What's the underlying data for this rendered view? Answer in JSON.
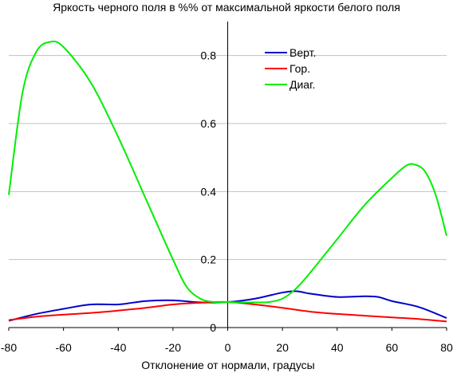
{
  "chart_data": {
    "type": "line",
    "title": "Яркость черного поля в %% от максимальной яркости белого поля",
    "xlabel": "Отклонение от нормали, градусы",
    "ylabel": "",
    "xlim": [
      -80,
      80
    ],
    "ylim": [
      0,
      0.9
    ],
    "x_ticks": [
      "-80",
      "-60",
      "-40",
      "-20",
      "0",
      "20",
      "40",
      "60",
      "80"
    ],
    "y_ticks": [
      "0",
      "0.2",
      "0.4",
      "0.6",
      "0.8"
    ],
    "grid": "horizontal",
    "legend_position": "top-right",
    "series": [
      {
        "name": "Верт.",
        "color": "#0000cc",
        "points": [
          [
            -80,
            0.02
          ],
          [
            -70,
            0.04
          ],
          [
            -60,
            0.055
          ],
          [
            -50,
            0.068
          ],
          [
            -40,
            0.068
          ],
          [
            -30,
            0.078
          ],
          [
            -20,
            0.08
          ],
          [
            -10,
            0.074
          ],
          [
            0,
            0.075
          ],
          [
            10,
            0.085
          ],
          [
            20,
            0.103
          ],
          [
            25,
            0.107
          ],
          [
            30,
            0.1
          ],
          [
            40,
            0.09
          ],
          [
            50,
            0.092
          ],
          [
            55,
            0.09
          ],
          [
            60,
            0.078
          ],
          [
            70,
            0.06
          ],
          [
            80,
            0.028
          ]
        ]
      },
      {
        "name": "Гор.",
        "color": "#ff0000",
        "points": [
          [
            -80,
            0.022
          ],
          [
            -70,
            0.032
          ],
          [
            -60,
            0.038
          ],
          [
            -50,
            0.043
          ],
          [
            -40,
            0.05
          ],
          [
            -30,
            0.058
          ],
          [
            -20,
            0.068
          ],
          [
            -10,
            0.073
          ],
          [
            0,
            0.075
          ],
          [
            10,
            0.068
          ],
          [
            20,
            0.058
          ],
          [
            30,
            0.047
          ],
          [
            40,
            0.04
          ],
          [
            50,
            0.035
          ],
          [
            60,
            0.03
          ],
          [
            70,
            0.025
          ],
          [
            80,
            0.018
          ]
        ]
      },
      {
        "name": "Диаг.",
        "color": "#00ee00",
        "points": [
          [
            -80,
            0.39
          ],
          [
            -75,
            0.69
          ],
          [
            -70,
            0.81
          ],
          [
            -65,
            0.84
          ],
          [
            -60,
            0.825
          ],
          [
            -50,
            0.72
          ],
          [
            -40,
            0.56
          ],
          [
            -30,
            0.38
          ],
          [
            -20,
            0.2
          ],
          [
            -15,
            0.12
          ],
          [
            -10,
            0.085
          ],
          [
            -5,
            0.075
          ],
          [
            0,
            0.075
          ],
          [
            5,
            0.074
          ],
          [
            10,
            0.074
          ],
          [
            15,
            0.075
          ],
          [
            20,
            0.085
          ],
          [
            25,
            0.115
          ],
          [
            30,
            0.16
          ],
          [
            40,
            0.26
          ],
          [
            50,
            0.36
          ],
          [
            60,
            0.44
          ],
          [
            65,
            0.475
          ],
          [
            68,
            0.48
          ],
          [
            72,
            0.46
          ],
          [
            76,
            0.39
          ],
          [
            80,
            0.27
          ]
        ]
      }
    ]
  }
}
